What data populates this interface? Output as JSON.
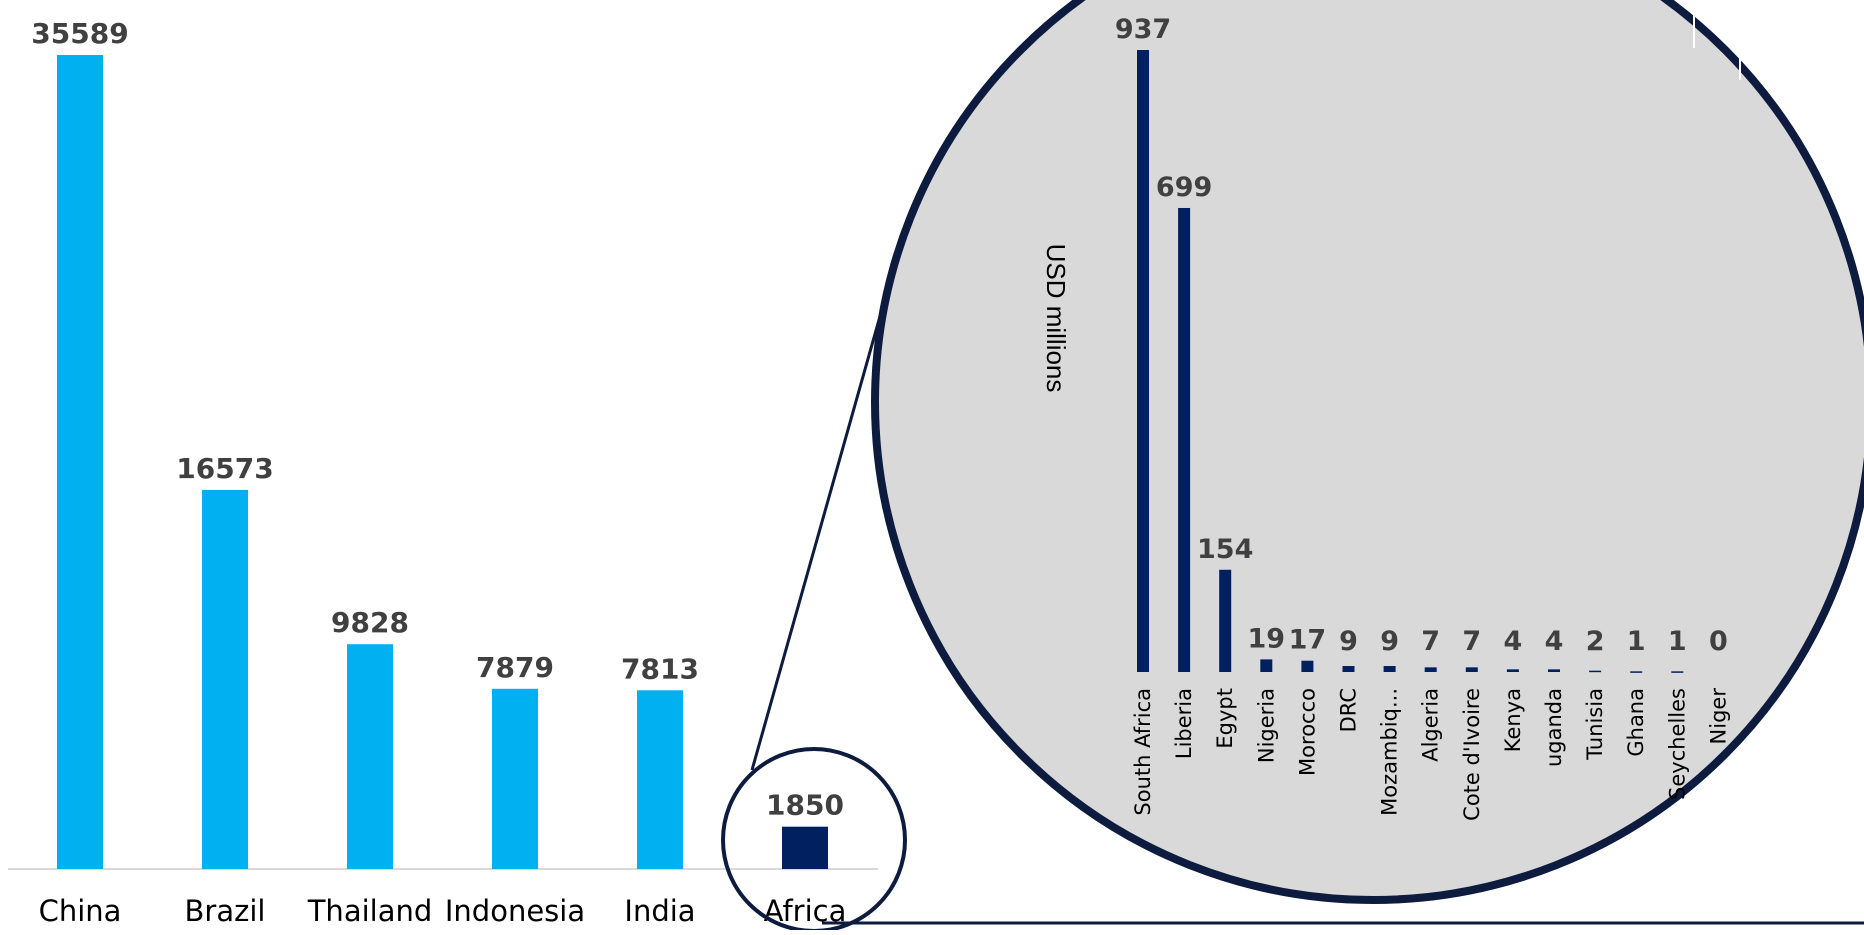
{
  "colors": {
    "main_bar": "#00B0F0",
    "highlight_bar": "#002060",
    "zoom_fill": "#D9D9D9",
    "zoom_stroke": "#0D1B3E",
    "label": "#404040"
  },
  "chart_data": [
    {
      "type": "bar",
      "categories": [
        "China",
        "Brazil",
        "Thailand",
        "Indonesia",
        "India",
        "Africa"
      ],
      "values": [
        35589,
        16573,
        9828,
        7879,
        7813,
        1850
      ],
      "highlight": "Africa",
      "ylim": [
        0,
        36000
      ],
      "grid": false,
      "data_labels": true
    },
    {
      "type": "bar",
      "categories": [
        "South Africa",
        "Liberia",
        "Egypt",
        "Nigeria",
        "Morocco",
        "DRC",
        "Mozambiq...",
        "Algeria",
        "Cote d'Ivoire",
        "Kenya",
        "uganda",
        "Tunisia",
        "Ghana",
        "Seychelles",
        "Niger"
      ],
      "values": [
        937,
        699,
        154,
        19,
        17,
        9,
        9,
        7,
        7,
        4,
        4,
        2,
        1,
        1,
        0
      ],
      "ylabel": "USD millions",
      "ylim": [
        0,
        1000
      ],
      "grid": false,
      "data_labels": true
    }
  ]
}
